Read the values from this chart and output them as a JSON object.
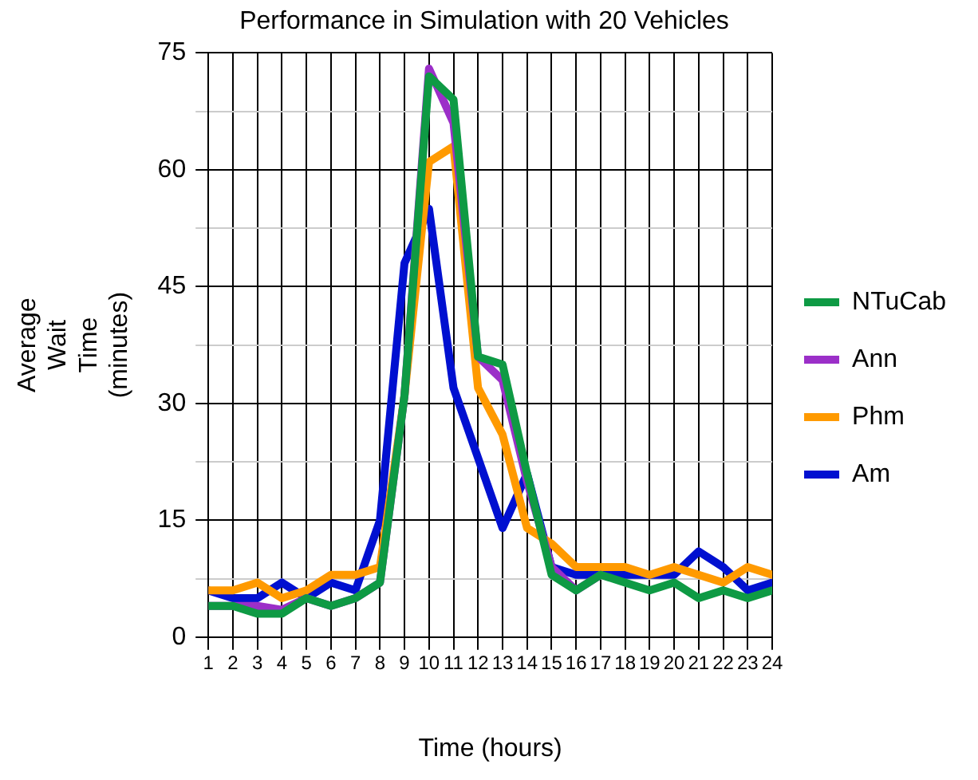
{
  "chart_data": {
    "type": "line",
    "title": "Performance in Simulation with 20 Vehicles",
    "xlabel": "Time (hours)",
    "ylabel": "Average Wait Time (minutes)",
    "x": [
      1,
      2,
      3,
      4,
      5,
      6,
      7,
      8,
      9,
      10,
      11,
      12,
      13,
      14,
      15,
      16,
      17,
      18,
      19,
      20,
      21,
      22,
      23,
      24
    ],
    "xlim": [
      1,
      24
    ],
    "xticks": [
      1,
      2,
      3,
      4,
      5,
      6,
      7,
      8,
      9,
      10,
      11,
      12,
      13,
      14,
      15,
      16,
      17,
      18,
      19,
      20,
      21,
      22,
      23,
      24
    ],
    "ylim": [
      0,
      75
    ],
    "yticks": [
      0,
      {
        "value": 7.5,
        "label": null
      },
      15,
      {
        "value": 22.5,
        "label": null
      },
      30,
      {
        "value": 37.5,
        "label": null
      },
      45,
      {
        "value": 52.5,
        "label": null
      },
      60,
      {
        "value": 67.5,
        "label": null
      },
      75
    ],
    "grid": true,
    "legend": "right",
    "marker": "none",
    "line_style": "solid",
    "series": [
      {
        "name": "NTuCab",
        "color": "#0e9a44",
        "values": [
          4,
          4,
          3,
          3,
          5,
          4,
          5,
          7,
          31,
          72,
          69,
          36,
          35,
          21,
          8,
          6,
          8,
          7,
          6,
          7,
          5,
          6,
          5,
          6
        ]
      },
      {
        "name": "Ann",
        "color": "#9b2fc8",
        "values": [
          4,
          4,
          4,
          3.5,
          5,
          4,
          5,
          7,
          31,
          73,
          66,
          36,
          33,
          20,
          9,
          6,
          8,
          null,
          null,
          null,
          null,
          null,
          null,
          null
        ]
      },
      {
        "name": "Phm",
        "color": "#ff9a00",
        "values": [
          6,
          6,
          7,
          5,
          6,
          8,
          8,
          9,
          31,
          61,
          63,
          32,
          26,
          14,
          12,
          9,
          9,
          9,
          8,
          9,
          8,
          7,
          9,
          8
        ]
      },
      {
        "name": "Am",
        "color": "#0010d0",
        "values": [
          6,
          5,
          5,
          7,
          5,
          7,
          6,
          15,
          48,
          55,
          32,
          23,
          14,
          21,
          9,
          8,
          8,
          8,
          8,
          8,
          11,
          9,
          6,
          7
        ]
      }
    ]
  }
}
